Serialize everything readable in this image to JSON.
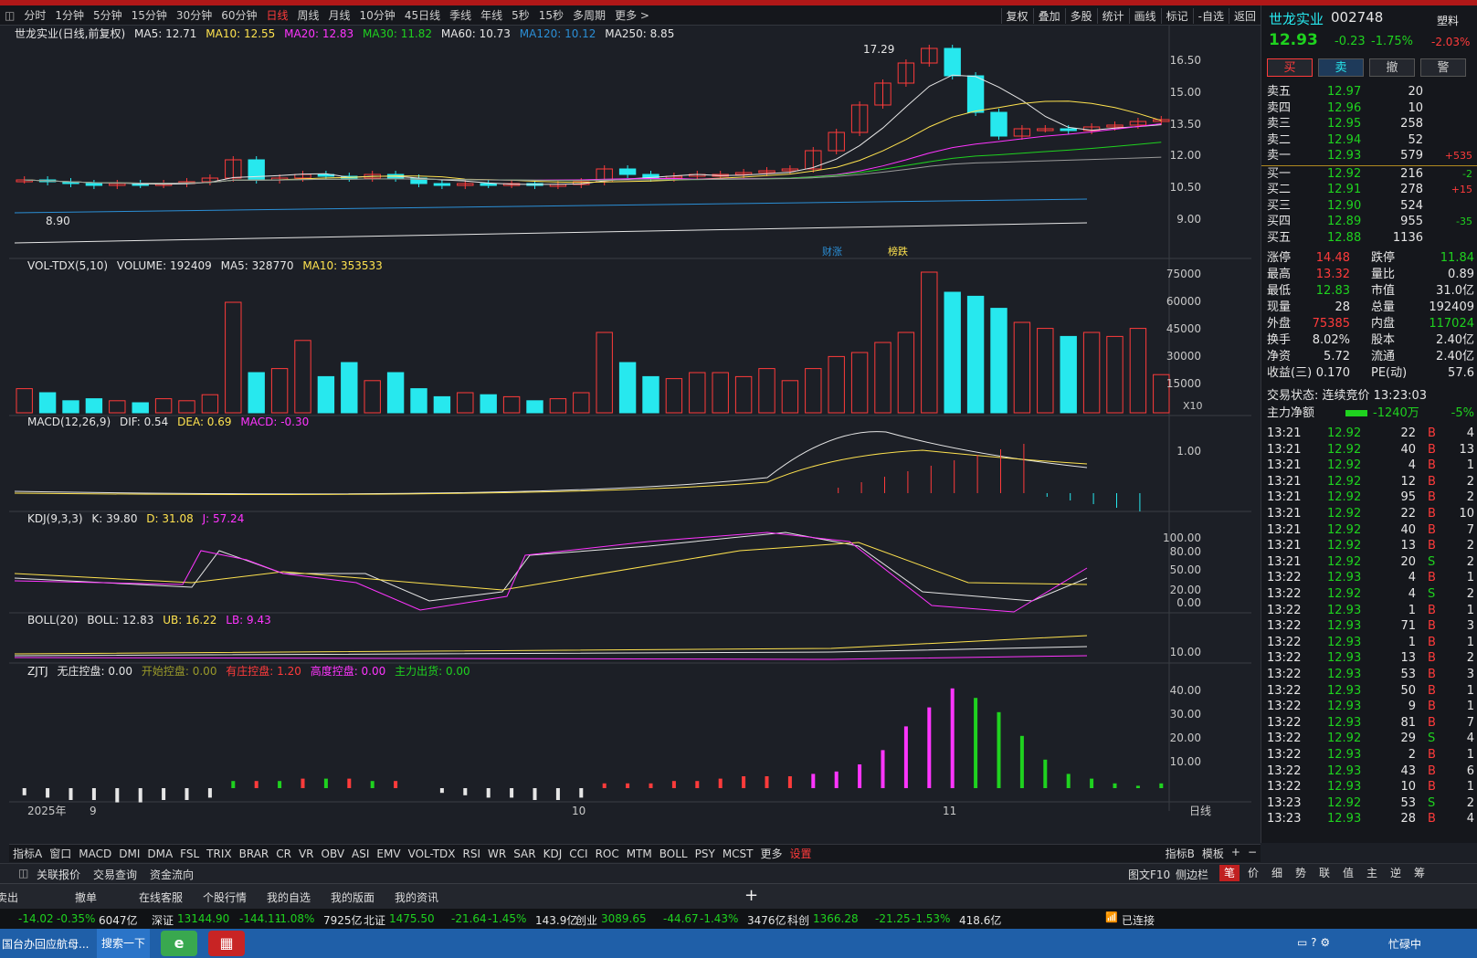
{
  "periods": [
    "分时",
    "1分钟",
    "5分钟",
    "15分钟",
    "30分钟",
    "60分钟",
    "日线",
    "周线",
    "月线",
    "10分钟",
    "45日线",
    "季线",
    "年线",
    "5秒",
    "15秒",
    "多周期",
    "更多 >"
  ],
  "active_period": "日线",
  "tools": [
    "复权",
    "叠加",
    "多股",
    "统计",
    "画线",
    "标记",
    "-自选",
    "返回"
  ],
  "main_legend": {
    "title": "世龙实业(日线,前复权)",
    "ma5": "MA5: 12.71",
    "ma10": "MA10: 12.55",
    "ma20": "MA20: 12.83",
    "ma30": "MA30: 11.82",
    "ma60": "MA60: 10.73",
    "ma120": "MA120: 10.12",
    "ma250": "MA250: 8.85"
  },
  "price_axis": [
    "16.50",
    "15.00",
    "13.50",
    "12.00",
    "10.50",
    "9.00"
  ],
  "high_label": "17.29",
  "low_label": "8.90",
  "news_tags": [
    "财涨",
    "榜跌"
  ],
  "vol_legend": {
    "name": "VOL-TDX(5,10)",
    "volume": "VOLUME: 192409",
    "ma5": "MA5: 328770",
    "ma10": "MA10: 353533"
  },
  "vol_axis": [
    "75000",
    "60000",
    "45000",
    "30000",
    "15000"
  ],
  "vol_unit": "X10",
  "macd_legend": {
    "name": "MACD(12,26,9)",
    "dif": "DIF: 0.54",
    "dea": "DEA: 0.69",
    "macd": "MACD: -0.30"
  },
  "macd_axis": [
    "1.00"
  ],
  "kdj_legend": {
    "name": "KDJ(9,3,3)",
    "k": "K: 39.80",
    "d": "D: 31.08",
    "j": "J: 57.24"
  },
  "kdj_axis": [
    "100.00",
    "80.00",
    "50.00",
    "20.00",
    "0.00"
  ],
  "boll_legend": {
    "name": "BOLL(20)",
    "boll": "BOLL: 12.83",
    "ub": "UB: 16.22",
    "lb": "LB: 9.43"
  },
  "boll_axis": [
    "10.00"
  ],
  "zjtj_legend": {
    "name": "ZJTJ",
    "a": "无庄控盘: 0.00",
    "b": "开始控盘: 0.00",
    "c": "有庄控盘: 1.20",
    "d": "高度控盘: 0.00",
    "e": "主力出货: 0.00"
  },
  "zjtj_axis": [
    "40.00",
    "30.00",
    "20.00",
    "10.00"
  ],
  "date_axis": {
    "year": "2025年",
    "m9": "9",
    "m10": "10",
    "m11": "11",
    "mode": "日线"
  },
  "stock": {
    "name": "世龙实业",
    "code": "002748",
    "sector": "塑料",
    "sector_chg": "-2.03%",
    "price": "12.93",
    "chg": "-0.23",
    "pct": "-1.75%"
  },
  "trade_buttons": [
    "买",
    "卖",
    "撤",
    "警"
  ],
  "asks": [
    {
      "l": "卖五",
      "p": "12.97",
      "v": "20",
      "d": ""
    },
    {
      "l": "卖四",
      "p": "12.96",
      "v": "10",
      "d": ""
    },
    {
      "l": "卖三",
      "p": "12.95",
      "v": "258",
      "d": ""
    },
    {
      "l": "卖二",
      "p": "12.94",
      "v": "52",
      "d": ""
    },
    {
      "l": "卖一",
      "p": "12.93",
      "v": "579",
      "d": "+535"
    }
  ],
  "bids": [
    {
      "l": "买一",
      "p": "12.92",
      "v": "216",
      "d": "-2"
    },
    {
      "l": "买二",
      "p": "12.91",
      "v": "278",
      "d": "+15"
    },
    {
      "l": "买三",
      "p": "12.90",
      "v": "524",
      "d": ""
    },
    {
      "l": "买四",
      "p": "12.89",
      "v": "955",
      "d": "-35"
    },
    {
      "l": "买五",
      "p": "12.88",
      "v": "1136",
      "d": ""
    }
  ],
  "stats": [
    [
      "涨停",
      "14.48",
      "跌停",
      "11.84"
    ],
    [
      "最高",
      "13.32",
      "量比",
      "0.89"
    ],
    [
      "最低",
      "12.83",
      "市值",
      "31.0亿"
    ],
    [
      "现量",
      "28",
      "总量",
      "192409"
    ],
    [
      "外盘",
      "75385",
      "内盘",
      "117024"
    ],
    [
      "换手",
      "8.02%",
      "股本",
      "2.40亿"
    ],
    [
      "净资",
      "5.72",
      "流通",
      "2.40亿"
    ],
    [
      "收益(三)",
      "0.170",
      "PE(动)",
      "57.6"
    ]
  ],
  "trade_status": "交易状态: 连续竞价 13:23:03",
  "main_net": {
    "label": "主力净额",
    "value": "-1240万",
    "pct": "-5%"
  },
  "ticks": [
    [
      "13:21",
      "12.92",
      "22",
      "B",
      "4"
    ],
    [
      "13:21",
      "12.92",
      "40",
      "B",
      "13"
    ],
    [
      "13:21",
      "12.92",
      "4",
      "B",
      "1"
    ],
    [
      "13:21",
      "12.92",
      "12",
      "B",
      "2"
    ],
    [
      "13:21",
      "12.92",
      "95",
      "B",
      "2"
    ],
    [
      "13:21",
      "12.92",
      "22",
      "B",
      "10"
    ],
    [
      "13:21",
      "12.92",
      "40",
      "B",
      "7"
    ],
    [
      "13:21",
      "12.92",
      "13",
      "B",
      "2"
    ],
    [
      "13:21",
      "12.92",
      "20",
      "S",
      "2"
    ],
    [
      "13:22",
      "12.93",
      "4",
      "B",
      "1"
    ],
    [
      "13:22",
      "12.92",
      "4",
      "S",
      "2"
    ],
    [
      "13:22",
      "12.93",
      "1",
      "B",
      "1"
    ],
    [
      "13:22",
      "12.93",
      "71",
      "B",
      "3"
    ],
    [
      "13:22",
      "12.93",
      "1",
      "B",
      "1"
    ],
    [
      "13:22",
      "12.93",
      "13",
      "B",
      "2"
    ],
    [
      "13:22",
      "12.93",
      "53",
      "B",
      "3"
    ],
    [
      "13:22",
      "12.93",
      "50",
      "B",
      "1"
    ],
    [
      "13:22",
      "12.93",
      "9",
      "B",
      "1"
    ],
    [
      "13:22",
      "12.93",
      "81",
      "B",
      "7"
    ],
    [
      "13:22",
      "12.92",
      "29",
      "S",
      "4"
    ],
    [
      "13:22",
      "12.93",
      "2",
      "B",
      "1"
    ],
    [
      "13:22",
      "12.93",
      "43",
      "B",
      "6"
    ],
    [
      "13:22",
      "12.93",
      "10",
      "B",
      "1"
    ],
    [
      "13:23",
      "12.92",
      "53",
      "S",
      "2"
    ],
    [
      "13:23",
      "12.93",
      "28",
      "B",
      "4"
    ]
  ],
  "indicator_tabs": [
    "指标A",
    "窗口",
    "MACD",
    "DMI",
    "DMA",
    "FSL",
    "TRIX",
    "BRAR",
    "CR",
    "VR",
    "OBV",
    "ASI",
    "EMV",
    "VOL-TDX",
    "RSI",
    "WR",
    "SAR",
    "KDJ",
    "CCI",
    "ROC",
    "MTM",
    "BOLL",
    "PSY",
    "MCST",
    "更多",
    "设置"
  ],
  "indicator_right": [
    "指标B",
    "模板",
    "+",
    "−"
  ],
  "sub_tabs": [
    "关联报价",
    "交易查询",
    "资金流向"
  ],
  "sub_right": [
    "图文F10",
    "侧边栏"
  ],
  "quote_tabs": [
    "笔",
    "价",
    "细",
    "势",
    "联",
    "值",
    "主",
    "逆",
    "筹"
  ],
  "actions": [
    "卖出",
    "撤单",
    "在线客服",
    "个股行情",
    "我的自选",
    "我的版面",
    "我的资讯"
  ],
  "indices": [
    {
      "n": "深证",
      "v": "13144.90",
      "c": "-144.11",
      "p": "-1.08%",
      "a": "7925亿"
    },
    {
      "n": "北证",
      "v": "1475.50",
      "c": "-21.64",
      "p": "-1.45%",
      "a": "143.9亿"
    },
    {
      "n": "创业",
      "v": "3089.65",
      "c": "-44.67",
      "p": "-1.43%",
      "a": "3476亿"
    },
    {
      "n": "科创",
      "v": "1366.28",
      "c": "-21.25",
      "p": "-1.53%",
      "a": "418.6亿"
    }
  ],
  "idx_first": {
    "c": "-14.02",
    "p": "-0.35%",
    "a": "6047亿"
  },
  "conn": "已连接",
  "taskbar": {
    "news": "国台办回应航母...",
    "search": "搜索一下",
    "status": "忙碌中"
  }
}
